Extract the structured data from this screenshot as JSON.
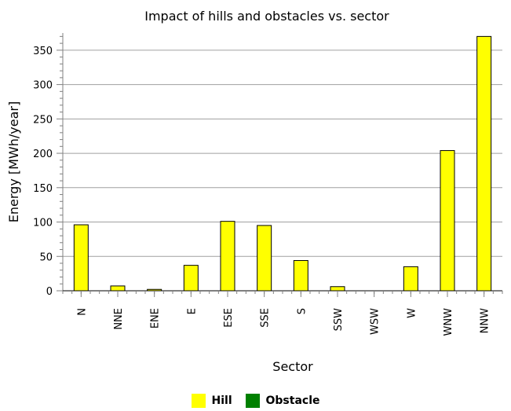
{
  "chart_data": {
    "type": "bar",
    "title": "Impact of hills and obstacles vs. sector",
    "xlabel": "Sector",
    "ylabel": "Energy [MWh/year]",
    "categories": [
      "N",
      "NNE",
      "ENE",
      "E",
      "ESE",
      "SSE",
      "S",
      "SSW",
      "WSW",
      "W",
      "WNW",
      "NNW"
    ],
    "series": [
      {
        "name": "Hill",
        "color": "#ffff00",
        "values": [
          96,
          7,
          2,
          37,
          101,
          95,
          44,
          6,
          0,
          35,
          204,
          370
        ]
      },
      {
        "name": "Obstacle",
        "color": "#008000",
        "values": [
          0,
          0,
          0,
          0,
          0,
          0,
          0,
          0,
          0,
          0,
          0,
          0
        ]
      }
    ],
    "ylim": [
      0,
      375
    ],
    "yticks": [
      0,
      50,
      100,
      150,
      200,
      250,
      300,
      350
    ],
    "grid": true,
    "legend": "bottom"
  }
}
